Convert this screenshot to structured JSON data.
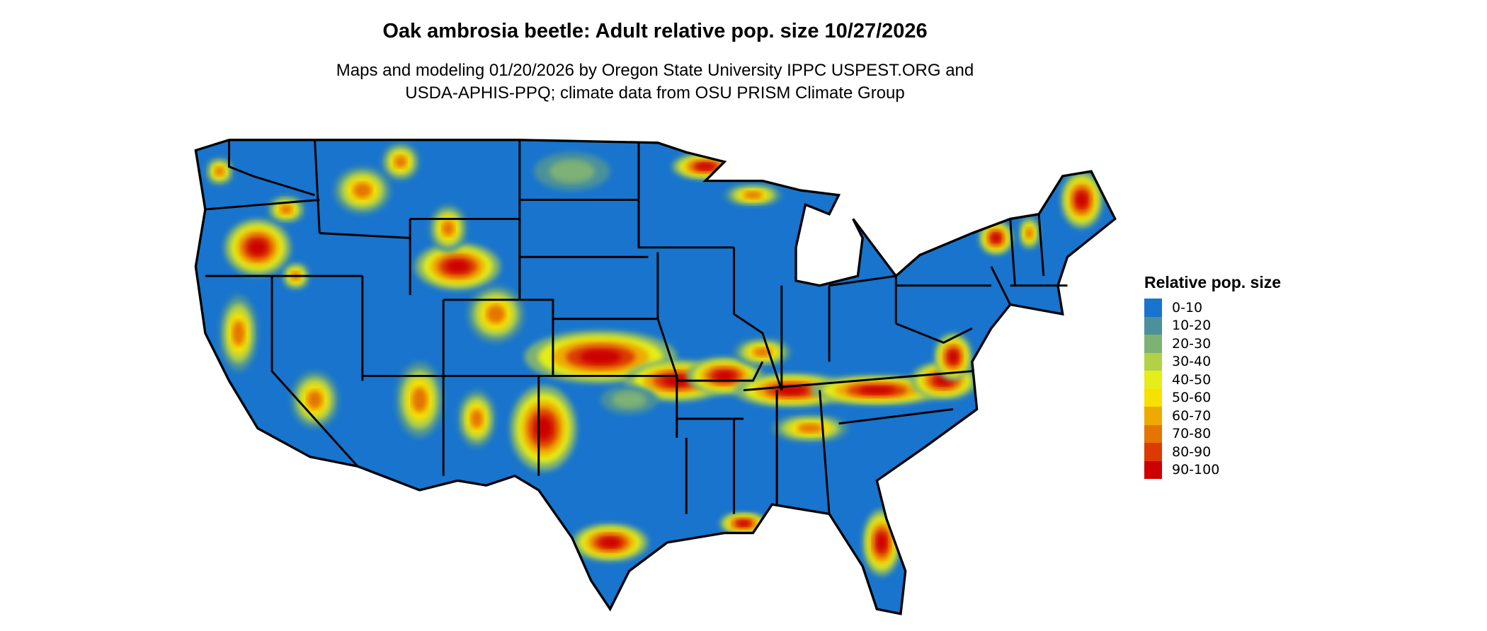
{
  "chart_data": {
    "type": "heatmap",
    "title": "Oak ambrosia beetle: Adult relative pop. size 10/27/2026",
    "subtitle_lines": [
      "Maps and modeling 01/20/2026 by Oregon State University IPPC USPEST.ORG and",
      "USDA-APHIS-PPQ; climate data from OSU PRISM Climate Group"
    ],
    "legend": {
      "title": "Relative pop. size",
      "placement": "right",
      "items": [
        {
          "label": "0-10",
          "color": "#1874CD"
        },
        {
          "label": "10-20",
          "color": "#4A919B"
        },
        {
          "label": "20-30",
          "color": "#7EB174"
        },
        {
          "label": "30-40",
          "color": "#B3D147"
        },
        {
          "label": "40-50",
          "color": "#E5EE18"
        },
        {
          "label": "50-60",
          "color": "#F8E000"
        },
        {
          "label": "60-70",
          "color": "#EEAA00"
        },
        {
          "label": "70-80",
          "color": "#E57400"
        },
        {
          "label": "80-90",
          "color": "#DD3A00"
        },
        {
          "label": "90-100",
          "color": "#CC0000"
        }
      ]
    }
  }
}
